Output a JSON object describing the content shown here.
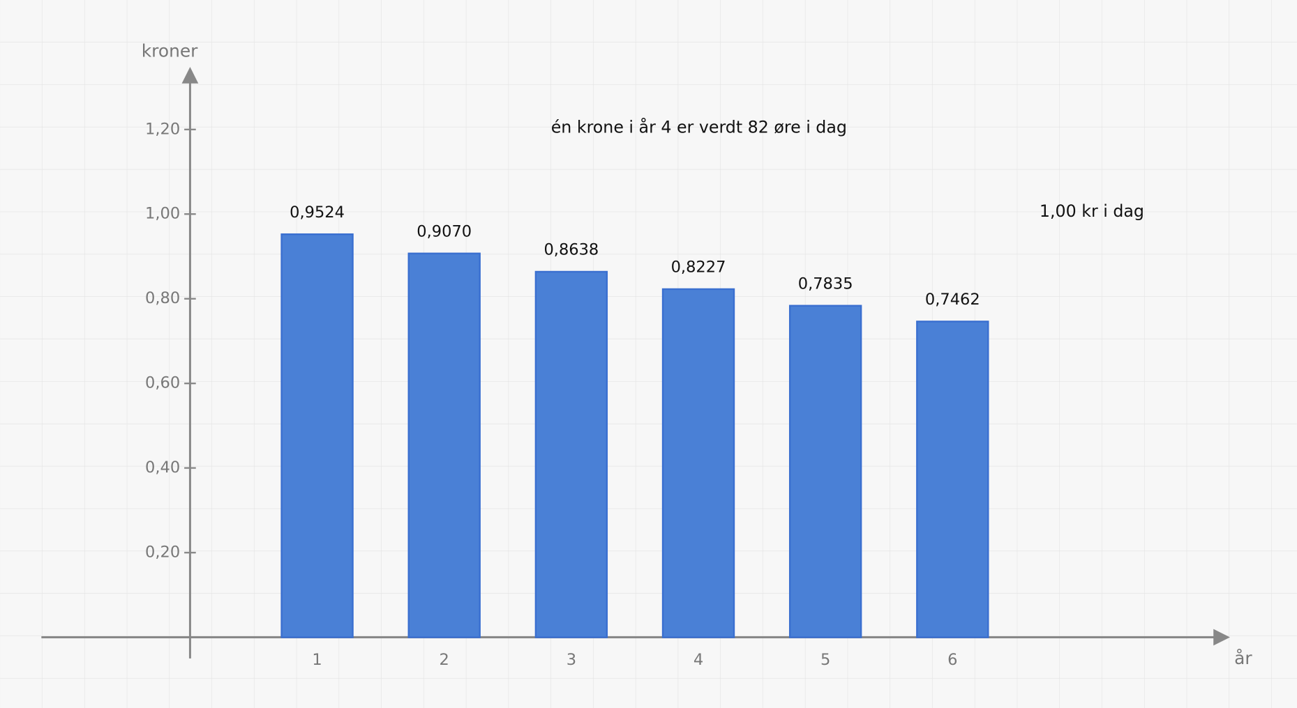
{
  "chart_data": {
    "type": "bar",
    "x_label": "år",
    "y_label": "kroner",
    "annotations": [
      "én krone i år 4 er verdt 82 øre i dag",
      "1,00 kr i dag"
    ],
    "x": [
      1,
      2,
      3,
      4,
      5,
      6
    ],
    "values": [
      0.9524,
      0.907,
      0.8638,
      0.8227,
      0.7835,
      0.7462
    ],
    "value_labels": [
      "0,9524",
      "0,9070",
      "0,8638",
      "0,8227",
      "0,7835",
      "0,7462"
    ],
    "color": "#4a80d6",
    "xlim": [
      -1.17,
      8.17
    ],
    "xticks": [
      1,
      2,
      3,
      4,
      5,
      6
    ],
    "ylim": [
      -0.05,
      1.34
    ],
    "yticks": [
      {
        "value": 0.2,
        "label": "0,20"
      },
      {
        "value": 0.4,
        "label": "0,40"
      },
      {
        "value": 0.6,
        "label": "0,60"
      },
      {
        "value": 0.8,
        "label": "0,80"
      },
      {
        "value": 1.0,
        "label": "1,00"
      },
      {
        "value": 1.2,
        "label": "1,20"
      }
    ],
    "grid": true
  }
}
